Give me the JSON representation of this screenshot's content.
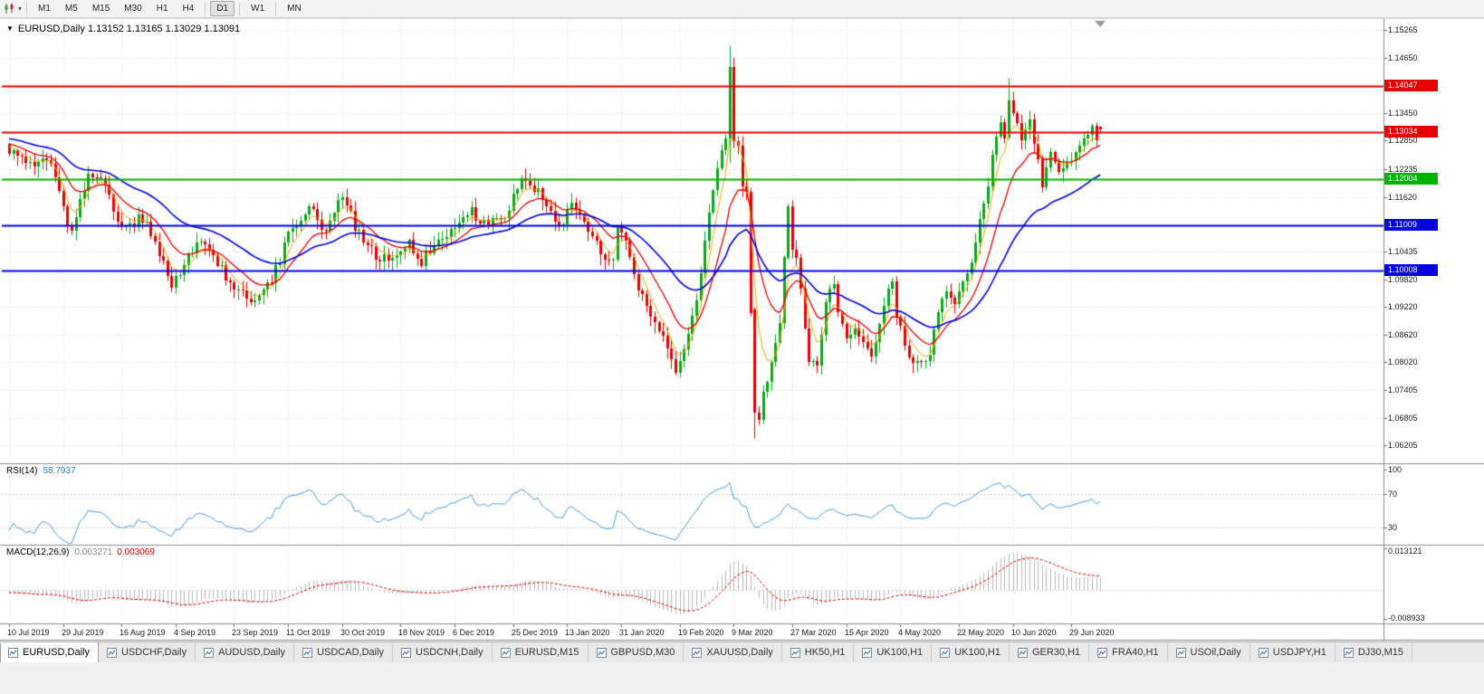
{
  "theme": {
    "window_bg": "#f0f0f0",
    "panel_bg": "#ffffff",
    "grid": "#dcdcdc",
    "border": "#8c8c8c",
    "axis_tick": "#707070"
  },
  "toolbar": {
    "icons": [
      "chart-type-icon",
      "chart-dropdown-caret-icon"
    ],
    "timeframes": [
      "M1",
      "M5",
      "M15",
      "M30",
      "H1",
      "H4",
      "D1",
      "W1",
      "MN"
    ],
    "active": "D1",
    "separators_after": [
      "H4",
      "D1",
      "W1"
    ]
  },
  "chart_data": {
    "type": "candlestick",
    "symbol_label": "EURUSD,Daily",
    "ohlc_text": "1.13152 1.13165 1.13029 1.13091",
    "ohlc": {
      "open": 1.13152,
      "high": 1.13165,
      "low": 1.13029,
      "close": 1.13091
    },
    "y_range": {
      "max": 1.15265,
      "min": 1.06205
    },
    "y_ticks": [
      "1.15265",
      "1.14650",
      "1.13450",
      "1.12850",
      "1.12235",
      "1.11620",
      "1.10435",
      "1.09820",
      "1.09220",
      "1.08620",
      "1.08020",
      "1.07405",
      "1.06805",
      "1.06205"
    ],
    "x_labels": [
      "10 Jul 2019",
      "29 Jul 2019",
      "16 Aug 2019",
      "4 Sep 2019",
      "23 Sep 2019",
      "11 Oct 2019",
      "30 Oct 2019",
      "18 Nov 2019",
      "6 Dec 2019",
      "25 Dec 2019",
      "13 Jan 2020",
      "31 Jan 2020",
      "19 Feb 2020",
      "9 Mar 2020",
      "27 Mar 2020",
      "15 Apr 2020",
      "4 May 2020",
      "22 May 2020",
      "10 Jun 2020",
      "29 Jun 2020"
    ],
    "horizontal_lines": [
      {
        "price": 1.14047,
        "label": "1.14047",
        "color": "#e60000"
      },
      {
        "price": 1.13034,
        "label": "1.13034",
        "color": "#e60000"
      },
      {
        "price": 1.12004,
        "label": "1.12004",
        "color": "#00b300"
      },
      {
        "price": 1.11009,
        "label": "1.11009",
        "color": "#0000e0"
      },
      {
        "price": 1.10008,
        "label": "1.10008",
        "color": "#0000e0"
      }
    ],
    "candles": {
      "count": 263,
      "bull_color": "#08a71c",
      "bear_color": "#e60000",
      "close_waypoints": [
        [
          0,
          1.1272
        ],
        [
          3,
          1.125
        ],
        [
          6,
          1.1228
        ],
        [
          9,
          1.124
        ],
        [
          11,
          1.1215
        ],
        [
          13,
          1.114
        ],
        [
          15,
          1.1082
        ],
        [
          17,
          1.115
        ],
        [
          19,
          1.1205
        ],
        [
          22,
          1.1198
        ],
        [
          24,
          1.116
        ],
        [
          26,
          1.1108
        ],
        [
          28,
          1.109
        ],
        [
          31,
          1.112
        ],
        [
          34,
          1.1088
        ],
        [
          36,
          1.104
        ],
        [
          39,
          1.0968
        ],
        [
          41,
          1.1
        ],
        [
          43,
          1.1035
        ],
        [
          46,
          1.1065
        ],
        [
          48,
          1.1042
        ],
        [
          50,
          1.1015
        ],
        [
          52,
          1.099
        ],
        [
          55,
          1.096
        ],
        [
          58,
          1.093
        ],
        [
          61,
          1.096
        ],
        [
          64,
          1.1
        ],
        [
          67,
          1.1075
        ],
        [
          70,
          1.112
        ],
        [
          72,
          1.115
        ],
        [
          74,
          1.11
        ],
        [
          76,
          1.1078
        ],
        [
          79,
          1.1148
        ],
        [
          81,
          1.1152
        ],
        [
          83,
          1.11
        ],
        [
          85,
          1.107
        ],
        [
          88,
          1.103
        ],
        [
          91,
          1.1018
        ],
        [
          94,
          1.1052
        ],
        [
          96,
          1.106
        ],
        [
          99,
          1.1018
        ],
        [
          102,
          1.1062
        ],
        [
          105,
          1.108
        ],
        [
          108,
          1.1105
        ],
        [
          111,
          1.113
        ],
        [
          113,
          1.1108
        ],
        [
          116,
          1.111
        ],
        [
          119,
          1.1118
        ],
        [
          121,
          1.116
        ],
        [
          123,
          1.1208
        ],
        [
          125,
          1.119
        ],
        [
          128,
          1.116
        ],
        [
          131,
          1.112
        ],
        [
          133,
          1.1108
        ],
        [
          135,
          1.1138
        ],
        [
          137,
          1.112
        ],
        [
          139,
          1.1098
        ],
        [
          141,
          1.106
        ],
        [
          143,
          1.1022
        ],
        [
          145,
          1.1016
        ],
        [
          146,
          1.1093
        ],
        [
          148,
          1.106
        ],
        [
          150,
          1.1
        ],
        [
          152,
          1.0945
        ],
        [
          154,
          1.0912
        ],
        [
          156,
          1.0868
        ],
        [
          158,
          1.0838
        ],
        [
          160,
          1.0785
        ],
        [
          162,
          1.082
        ],
        [
          164,
          1.089
        ],
        [
          166,
          1.1
        ],
        [
          168,
          1.113
        ],
        [
          170,
          1.123
        ],
        [
          172,
          1.1285
        ],
        [
          173,
          1.1446
        ],
        [
          174,
          1.1281
        ],
        [
          175,
          1.1271
        ],
        [
          176,
          1.1184
        ],
        [
          177,
          1.118
        ],
        [
          178,
          1.0916
        ],
        [
          179,
          1.0692
        ],
        [
          180,
          1.0688
        ],
        [
          181,
          1.0724
        ],
        [
          183,
          1.0789
        ],
        [
          185,
          1.0883
        ],
        [
          186,
          1.103
        ],
        [
          187,
          1.1141
        ],
        [
          188,
          1.1048
        ],
        [
          189,
          1.1031
        ],
        [
          190,
          1.0965
        ],
        [
          192,
          1.0808
        ],
        [
          194,
          1.0791
        ],
        [
          196,
          1.093
        ],
        [
          198,
          1.098
        ],
        [
          199,
          1.091
        ],
        [
          201,
          1.0858
        ],
        [
          203,
          1.0872
        ],
        [
          205,
          1.084
        ],
        [
          207,
          1.0821
        ],
        [
          209,
          1.0875
        ],
        [
          211,
          1.0955
        ],
        [
          212,
          1.098
        ],
        [
          213,
          1.0905
        ],
        [
          215,
          1.0834
        ],
        [
          217,
          1.0795
        ],
        [
          219,
          1.0805
        ],
        [
          221,
          1.0815
        ],
        [
          223,
          1.0916
        ],
        [
          225,
          1.0949
        ],
        [
          227,
          1.092
        ],
        [
          229,
          1.0983
        ],
        [
          231,
          1.101
        ],
        [
          233,
          1.1101
        ],
        [
          234,
          1.1134
        ],
        [
          236,
          1.125
        ],
        [
          238,
          1.1337
        ],
        [
          239,
          1.1291
        ],
        [
          240,
          1.1373
        ],
        [
          241,
          1.1348
        ],
        [
          243,
          1.1298
        ],
        [
          245,
          1.1323
        ],
        [
          247,
          1.124
        ],
        [
          248,
          1.1177
        ],
        [
          250,
          1.126
        ],
        [
          252,
          1.1219
        ],
        [
          254,
          1.1234
        ],
        [
          256,
          1.1252
        ],
        [
          258,
          1.1286
        ],
        [
          260,
          1.1308
        ],
        [
          261,
          1.1284
        ],
        [
          262,
          1.13091
        ]
      ],
      "specials": {
        "173": {
          "o": 1.129,
          "h": 1.1492,
          "l": 1.1239,
          "c": 1.1446
        },
        "179": {
          "o": 1.0916,
          "h": 1.0922,
          "l": 1.0636,
          "c": 1.0692
        },
        "187": {
          "o": 1.103,
          "h": 1.1147,
          "l": 1.1025,
          "c": 1.1141
        },
        "240": {
          "o": 1.1291,
          "h": 1.1422,
          "l": 1.1288,
          "c": 1.1373
        },
        "262": {
          "o": 1.13152,
          "h": 1.13165,
          "l": 1.13029,
          "c": 1.13091
        }
      }
    },
    "moving_averages": [
      {
        "name": "ma-fast",
        "period": 5,
        "color": "#eeaa00",
        "width": 1
      },
      {
        "name": "ma-medium",
        "period": 13,
        "color": "#e60000",
        "width": 1.3
      },
      {
        "name": "ma-slow",
        "period": 34,
        "color": "#0000e0",
        "width": 1.6
      }
    ],
    "rsi": {
      "label": "RSI(14)",
      "value": "58.7937",
      "period": 14,
      "color": "#4a9ede",
      "levels": [
        "100",
        "70",
        "30"
      ]
    },
    "macd": {
      "label": "MACD(12,26,9)",
      "value_main": "0.003271",
      "value_signal": "0.003069",
      "fast": 12,
      "slow": 26,
      "signal": 9,
      "scale_top": "0.013121",
      "scale_bottom": "-0.008933",
      "histogram_color": "#b8b8b8",
      "signal_color": "#e60000"
    }
  },
  "tabs": {
    "items": [
      {
        "label": "EURUSD,Daily",
        "active": true
      },
      {
        "label": "USDCHF,Daily",
        "active": false
      },
      {
        "label": "AUDUSD,Daily",
        "active": false
      },
      {
        "label": "USDCAD,Daily",
        "active": false
      },
      {
        "label": "USDCNH,Daily",
        "active": false
      },
      {
        "label": "EURUSD,M15",
        "active": false
      },
      {
        "label": "GBPUSD,M30",
        "active": false
      },
      {
        "label": "XAUUSD,Daily",
        "active": false
      },
      {
        "label": "HK50,H1",
        "active": false
      },
      {
        "label": "UK100,H1",
        "active": false
      },
      {
        "label": "UK100,H1",
        "active": false
      },
      {
        "label": "GER30,H1",
        "active": false
      },
      {
        "label": "FRA40,H1",
        "active": false
      },
      {
        "label": "USOil,Daily",
        "active": false
      },
      {
        "label": "USDJPY,H1",
        "active": false
      },
      {
        "label": "DJ30,M15",
        "active": false
      }
    ]
  }
}
